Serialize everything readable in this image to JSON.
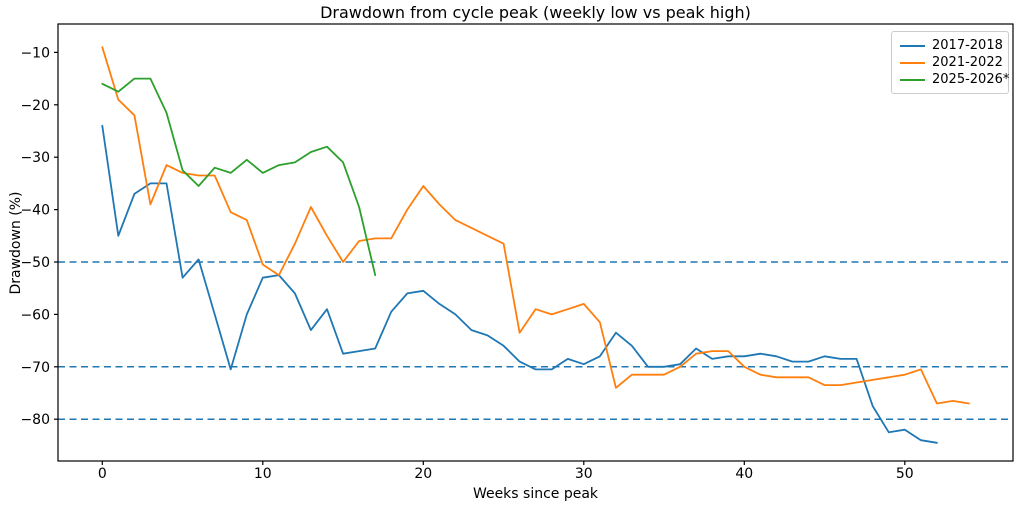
{
  "chart_data": {
    "type": "line",
    "title": "Drawdown from cycle peak (weekly low vs peak high)",
    "xlabel": "Weeks since peak",
    "ylabel": "Drawdown (%)",
    "x_start": 0,
    "x_step": 1,
    "xlim": [
      -2.3,
      56.7
    ],
    "ylim": [
      -88,
      -4.5
    ],
    "xticks": [
      0,
      10,
      20,
      30,
      40,
      50
    ],
    "yticks": [
      -10,
      -20,
      -30,
      -40,
      -50,
      -60,
      -70,
      -80
    ],
    "grid": false,
    "hlines": {
      "values": [
        -50,
        -70,
        -80
      ],
      "style": "dashed",
      "color": "#1f77b4"
    },
    "legend_position": "upper right",
    "series": [
      {
        "name": "2017-2018",
        "color": "#1f77b4",
        "values": [
          -24,
          -45,
          -37,
          -35,
          -35,
          -53,
          -49.5,
          -60,
          -70.5,
          -60,
          -53,
          -52.5,
          -56,
          -63,
          -59,
          -67.5,
          -67,
          -66.5,
          -59.5,
          -56,
          -55.5,
          -58,
          -60,
          -63,
          -64,
          -66,
          -69,
          -70.5,
          -70.5,
          -68.5,
          -69.5,
          -68,
          -63.5,
          -66,
          -70,
          -70,
          -69.5,
          -66.5,
          -68.5,
          -68,
          -68,
          -67.5,
          -68,
          -69,
          -69,
          -68,
          -68.5,
          -68.5,
          -77.5,
          -82.5,
          -82,
          -84,
          -84.5
        ]
      },
      {
        "name": "2021-2022",
        "color": "#ff7f0e",
        "values": [
          -9,
          -19,
          -22,
          -39,
          -31.5,
          -33,
          -33.5,
          -33.5,
          -40.5,
          -42,
          -50.5,
          -52.5,
          -46.5,
          -39.5,
          -45,
          -50,
          -46,
          -45.5,
          -45.5,
          -40,
          -35.5,
          -39,
          -42,
          -43.5,
          -45,
          -46.5,
          -63.5,
          -59,
          -60,
          -59,
          -58,
          -61.5,
          -74,
          -71.5,
          -71.5,
          -71.5,
          -70,
          -67.5,
          -67,
          -67,
          -70,
          -71.5,
          -72,
          -72,
          -72,
          -73.5,
          -73.5,
          -73,
          -72.5,
          -72,
          -71.5,
          -70.5,
          -77,
          -76.5,
          -77
        ]
      },
      {
        "name": "2025-2026*",
        "color": "#2ca02c",
        "values": [
          -16,
          -17.5,
          -15,
          -15,
          -21.5,
          -32.5,
          -35.5,
          -32,
          -33,
          -30.5,
          -33,
          -31.5,
          -31,
          -29,
          -28,
          -31,
          -39.5,
          -52.5
        ]
      }
    ]
  }
}
